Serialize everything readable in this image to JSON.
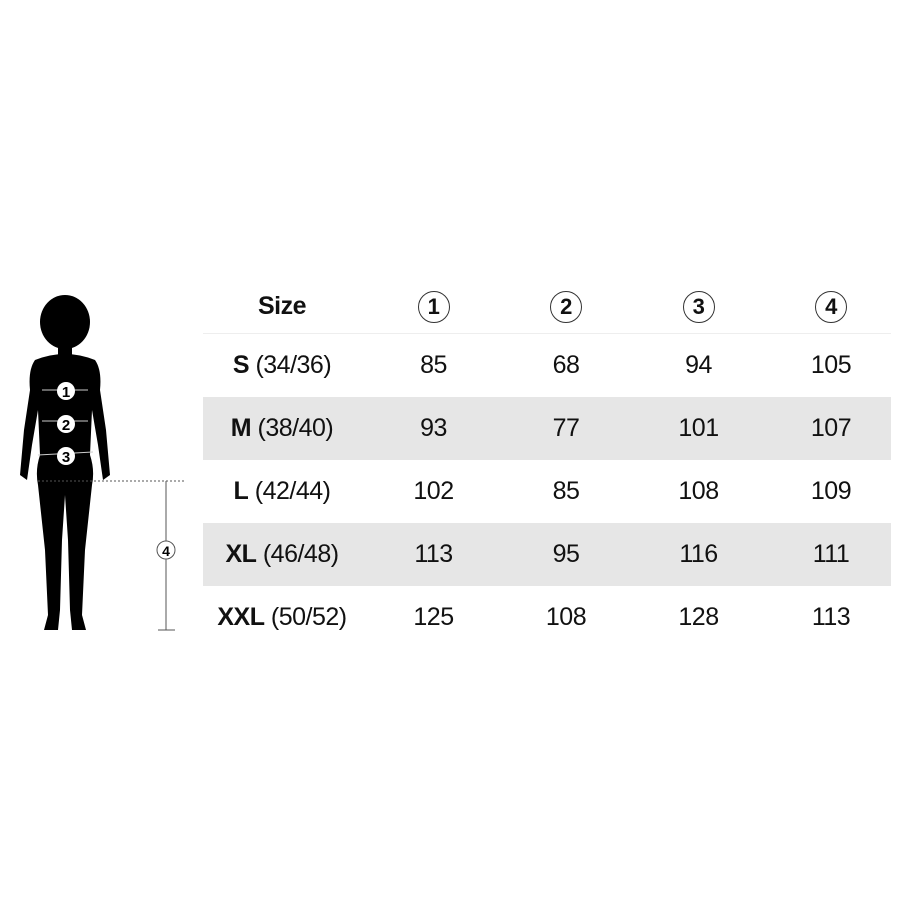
{
  "header": {
    "size_label": "Size",
    "columns": [
      "1",
      "2",
      "3",
      "4"
    ]
  },
  "figure": {
    "markers": [
      "1",
      "2",
      "3"
    ],
    "length_marker": "4"
  },
  "rows": [
    {
      "size": "S",
      "eu": "(34/36)",
      "values": [
        "85",
        "68",
        "94",
        "105"
      ]
    },
    {
      "size": "M",
      "eu": "(38/40)",
      "values": [
        "93",
        "77",
        "101",
        "107"
      ]
    },
    {
      "size": "L",
      "eu": "(42/44)",
      "values": [
        "102",
        "85",
        "108",
        "109"
      ]
    },
    {
      "size": "XL",
      "eu": "(46/48)",
      "values": [
        "113",
        "95",
        "116",
        "111"
      ]
    },
    {
      "size": "XXL",
      "eu": "(50/52)",
      "values": [
        "125",
        "108",
        "128",
        "113"
      ]
    }
  ],
  "colors": {
    "stripe": "#e6e6e6",
    "silhouette": "#000000"
  }
}
